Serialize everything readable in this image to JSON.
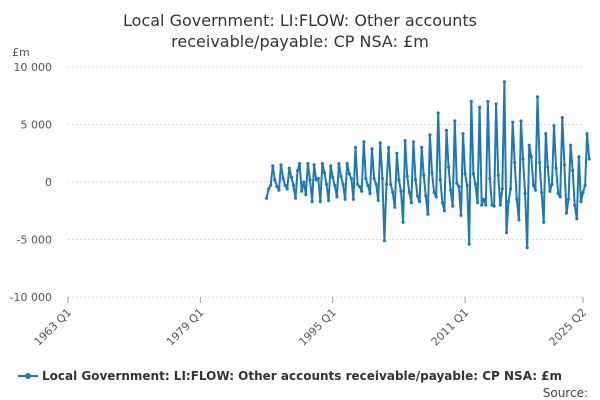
{
  "chart_data": {
    "type": "line",
    "title_lines": [
      "Local Government: LI:FLOW: Other accounts",
      "receivable/payable: CP NSA: £m"
    ],
    "ylabel": "£m",
    "ylim": [
      -10000,
      10000
    ],
    "y_ticks": [
      10000,
      5000,
      0,
      -5000,
      -10000
    ],
    "y_tick_labels": [
      "10 000",
      "5 000",
      "0",
      "-5 000",
      "-10 000"
    ],
    "x_range": [
      1963.0,
      2025.25
    ],
    "x_ticks": [
      1963.0,
      1979.0,
      1995.0,
      2011.0,
      2025.25
    ],
    "x_tick_labels": [
      "1963 Q1",
      "1979 Q1",
      "1995 Q1",
      "2011 Q1",
      "2025 Q2"
    ],
    "grid": true,
    "legend_position": "bottom",
    "color": "#1f78b4",
    "source": "Source:",
    "series": [
      {
        "name": "Local Government: LI:FLOW: Other accounts receivable/payable: CP NSA: £m",
        "start": 1987.0,
        "step": 0.25,
        "values": [
          -1400,
          -600,
          -300,
          1400,
          200,
          -400,
          -700,
          1500,
          300,
          -300,
          -600,
          1200,
          400,
          -300,
          -1400,
          1000,
          1600,
          -800,
          0,
          -1100,
          1600,
          200,
          -1700,
          1500,
          200,
          300,
          -1700,
          1600,
          800,
          -200,
          -1600,
          1400,
          400,
          -300,
          -1300,
          1600,
          500,
          -200,
          -1500,
          1600,
          700,
          300,
          -1500,
          3000,
          -200,
          -400,
          -800,
          3500,
          300,
          -300,
          -1000,
          2900,
          300,
          -200,
          -1600,
          3400,
          300,
          -5100,
          -200,
          3000,
          -200,
          -900,
          -2200,
          2500,
          200,
          -800,
          -3500,
          3600,
          500,
          -900,
          -1800,
          3500,
          200,
          -1200,
          -1700,
          3000,
          600,
          -1200,
          -2800,
          4100,
          800,
          -900,
          -1300,
          6000,
          200,
          -1800,
          -2500,
          4500,
          1300,
          -700,
          -2100,
          5300,
          -100,
          -400,
          -2900,
          4200,
          700,
          -300,
          -5400,
          7000,
          700,
          -200,
          -1800,
          6500,
          -2000,
          -1500,
          -2000,
          7000,
          300,
          -2000,
          -2100,
          6800,
          600,
          -2000,
          -600,
          8700,
          -4400,
          -1700,
          -600,
          5200,
          1700,
          -1500,
          -3300,
          5300,
          2000,
          -1000,
          -5700,
          3200,
          2200,
          -300,
          -700,
          7400,
          1700,
          -900,
          -3500,
          4200,
          1300,
          -800,
          -200,
          4900,
          1200,
          -1000,
          -1300,
          5600,
          1500,
          -2700,
          -1500,
          3200,
          1000,
          -2000,
          -3200,
          2200,
          -1700,
          -900,
          -300,
          4200,
          2000
        ]
      }
    ]
  }
}
